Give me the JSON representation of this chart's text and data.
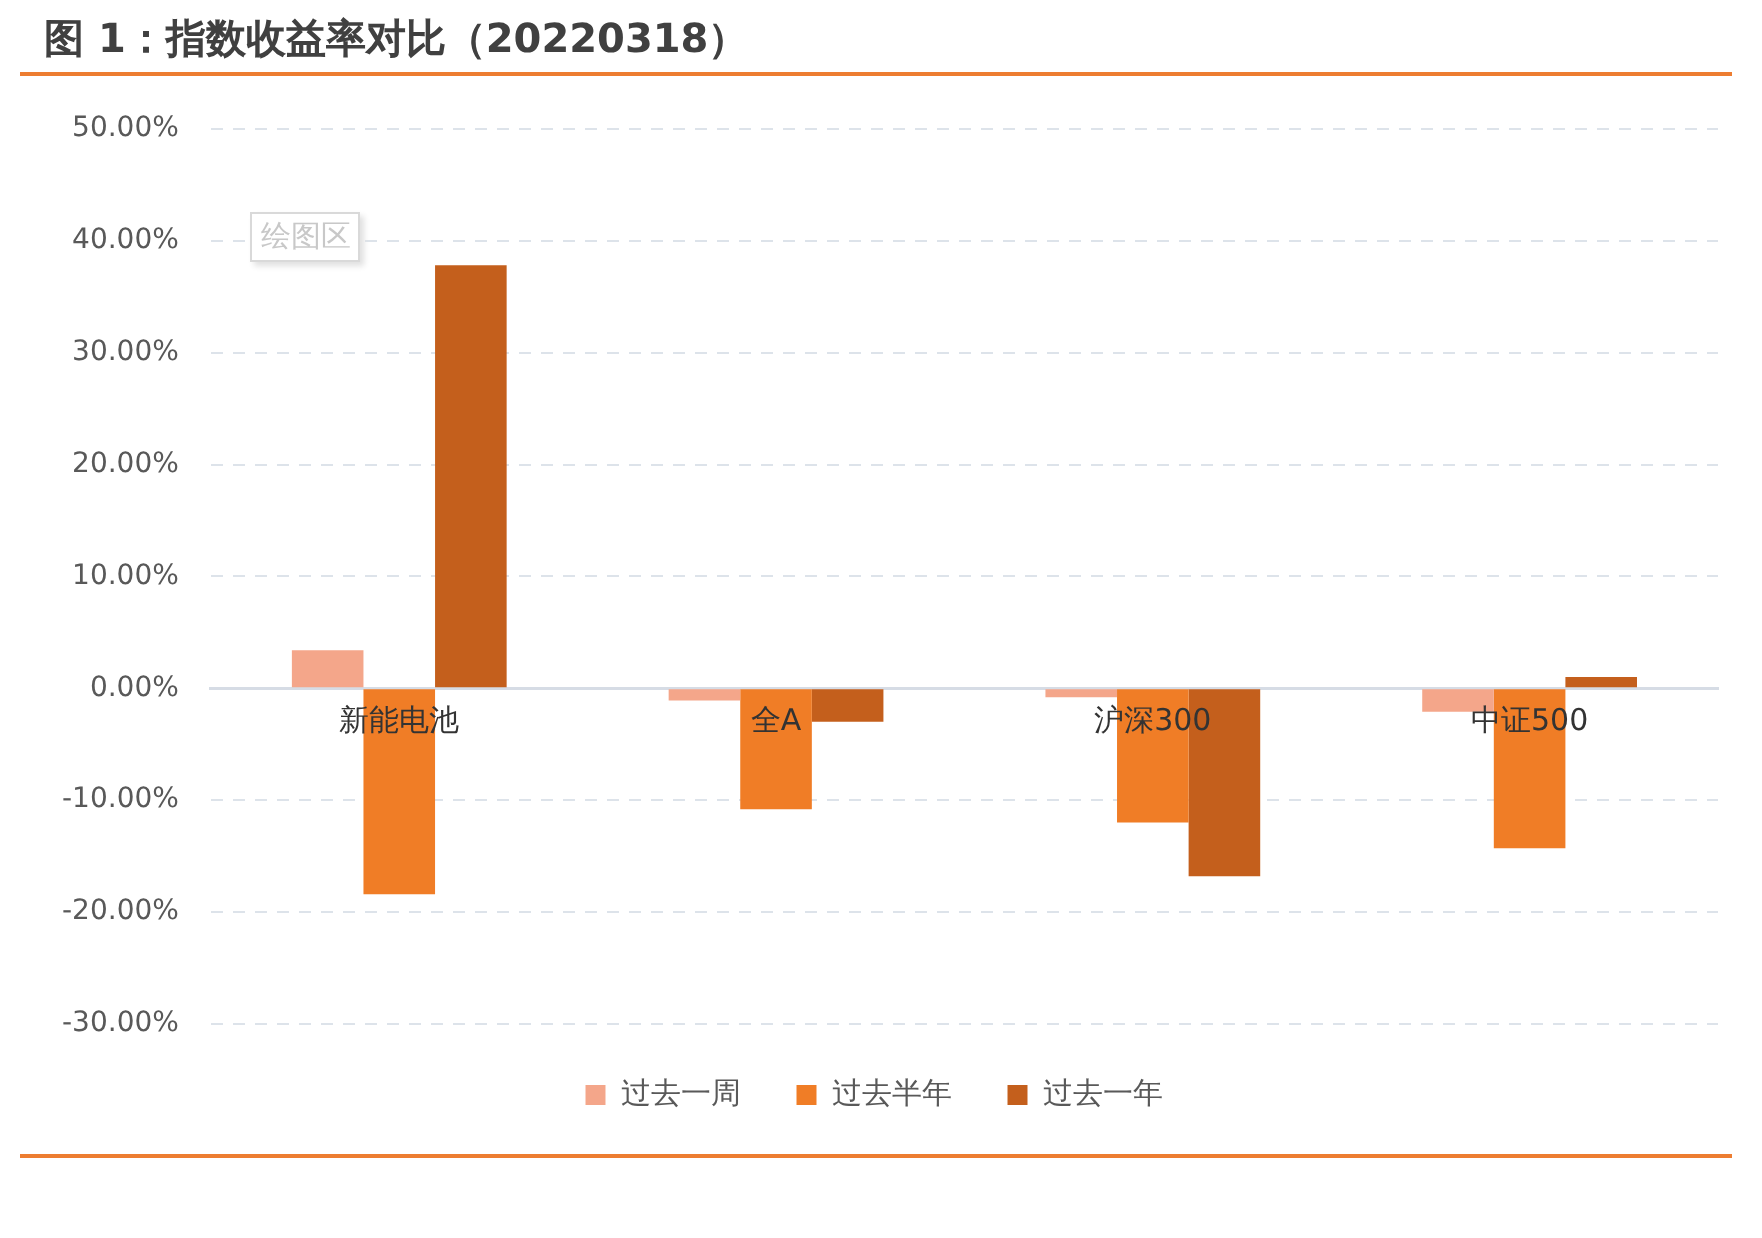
{
  "chart_data": {
    "type": "bar",
    "title": "图 1：指数收益率对比（20220318）",
    "categories": [
      "新能电池",
      "全A",
      "沪深300",
      "中证500"
    ],
    "series": [
      {
        "name": "过去一周",
        "color": "#f4a68a",
        "values": [
          3.4,
          -1.1,
          -0.8,
          -2.1
        ]
      },
      {
        "name": "过去半年",
        "color": "#f07d26",
        "values": [
          -18.4,
          -10.8,
          -12.0,
          -14.3
        ]
      },
      {
        "name": "过去一年",
        "color": "#c45f1c",
        "values": [
          37.8,
          -3.0,
          -16.8,
          1.0
        ]
      }
    ],
    "ylim": [
      -30,
      50
    ],
    "yticks": [
      {
        "value": -30,
        "label": "-30.00%"
      },
      {
        "value": -20,
        "label": "-20.00%"
      },
      {
        "value": -10,
        "label": "-10.00%"
      },
      {
        "value": 0,
        "label": "0.00%"
      },
      {
        "value": 10,
        "label": "10.00%"
      },
      {
        "value": 20,
        "label": "20.00%"
      },
      {
        "value": 30,
        "label": "30.00%"
      },
      {
        "value": 40,
        "label": "40.00%"
      },
      {
        "value": 50,
        "label": "50.00%"
      }
    ],
    "grid": "y",
    "legend": "bottom",
    "annotations": [
      "绘图区"
    ]
  }
}
